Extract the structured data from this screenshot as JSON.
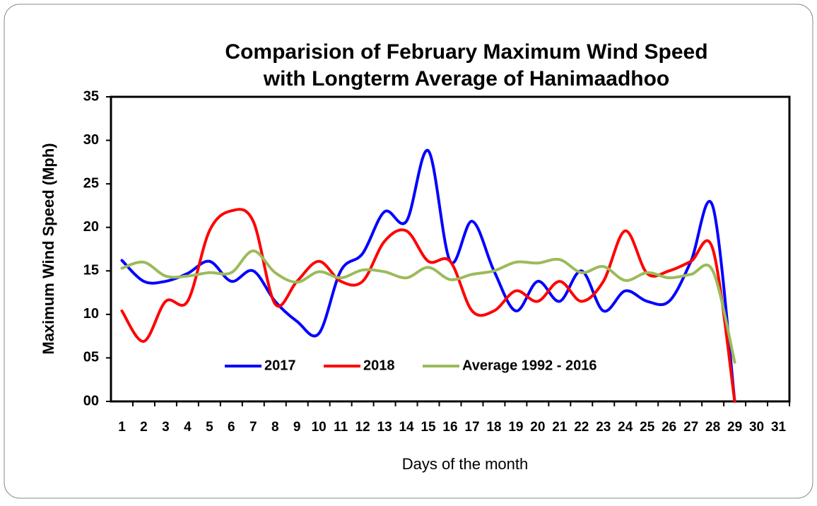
{
  "chart_data": {
    "type": "line",
    "title": [
      "Comparision of February Maximum Wind Speed",
      "with Longterm Average of Hanimaadhoo"
    ],
    "x_label": "Days of the month",
    "y_label": "Maximum Wind Speed (Mph)",
    "categories": [
      "1",
      "2",
      "3",
      "4",
      "5",
      "6",
      "7",
      "8",
      "9",
      "10",
      "11",
      "12",
      "13",
      "14",
      "15",
      "16",
      "17",
      "18",
      "19",
      "20",
      "21",
      "22",
      "23",
      "24",
      "25",
      "26",
      "27",
      "28",
      "29",
      "30",
      "31"
    ],
    "series": [
      {
        "name": "2017",
        "color": "#0000ff",
        "values": [
          16.2,
          13.8,
          13.8,
          14.7,
          16.1,
          13.8,
          15.0,
          11.5,
          9.2,
          7.8,
          15.0,
          17.0,
          21.8,
          20.7,
          28.8,
          16.1,
          20.7,
          15.0,
          10.4,
          13.8,
          11.5,
          15.0,
          10.4,
          12.7,
          11.5,
          11.5,
          16.1,
          22.4,
          0,
          null,
          null
        ]
      },
      {
        "name": "2018",
        "color": "#ff0000",
        "values": [
          10.4,
          6.9,
          11.5,
          11.5,
          19.6,
          21.9,
          20.7,
          11.2,
          13.8,
          16.1,
          13.8,
          13.8,
          18.4,
          19.6,
          16.1,
          16.1,
          10.4,
          10.4,
          12.7,
          11.5,
          13.8,
          11.5,
          13.8,
          19.6,
          14.7,
          15.0,
          16.1,
          17.5,
          0,
          null,
          null
        ]
      },
      {
        "name": "Average 1992 - 2016",
        "color": "#9bbb59",
        "values": [
          15.3,
          16.0,
          14.4,
          14.4,
          14.8,
          14.8,
          17.3,
          14.8,
          13.7,
          14.9,
          14.2,
          15.1,
          14.9,
          14.2,
          15.4,
          14.0,
          14.6,
          15.0,
          16.0,
          15.9,
          16.3,
          14.8,
          15.5,
          13.9,
          14.8,
          14.2,
          14.6,
          15.0,
          4.5,
          null,
          null
        ]
      }
    ],
    "ylim": [
      0,
      35
    ],
    "yticks": [
      {
        "value": 0,
        "label": "00"
      },
      {
        "value": 5,
        "label": "05"
      },
      10,
      15,
      20,
      25,
      30,
      35
    ],
    "grid": false,
    "legend": "bottom"
  }
}
